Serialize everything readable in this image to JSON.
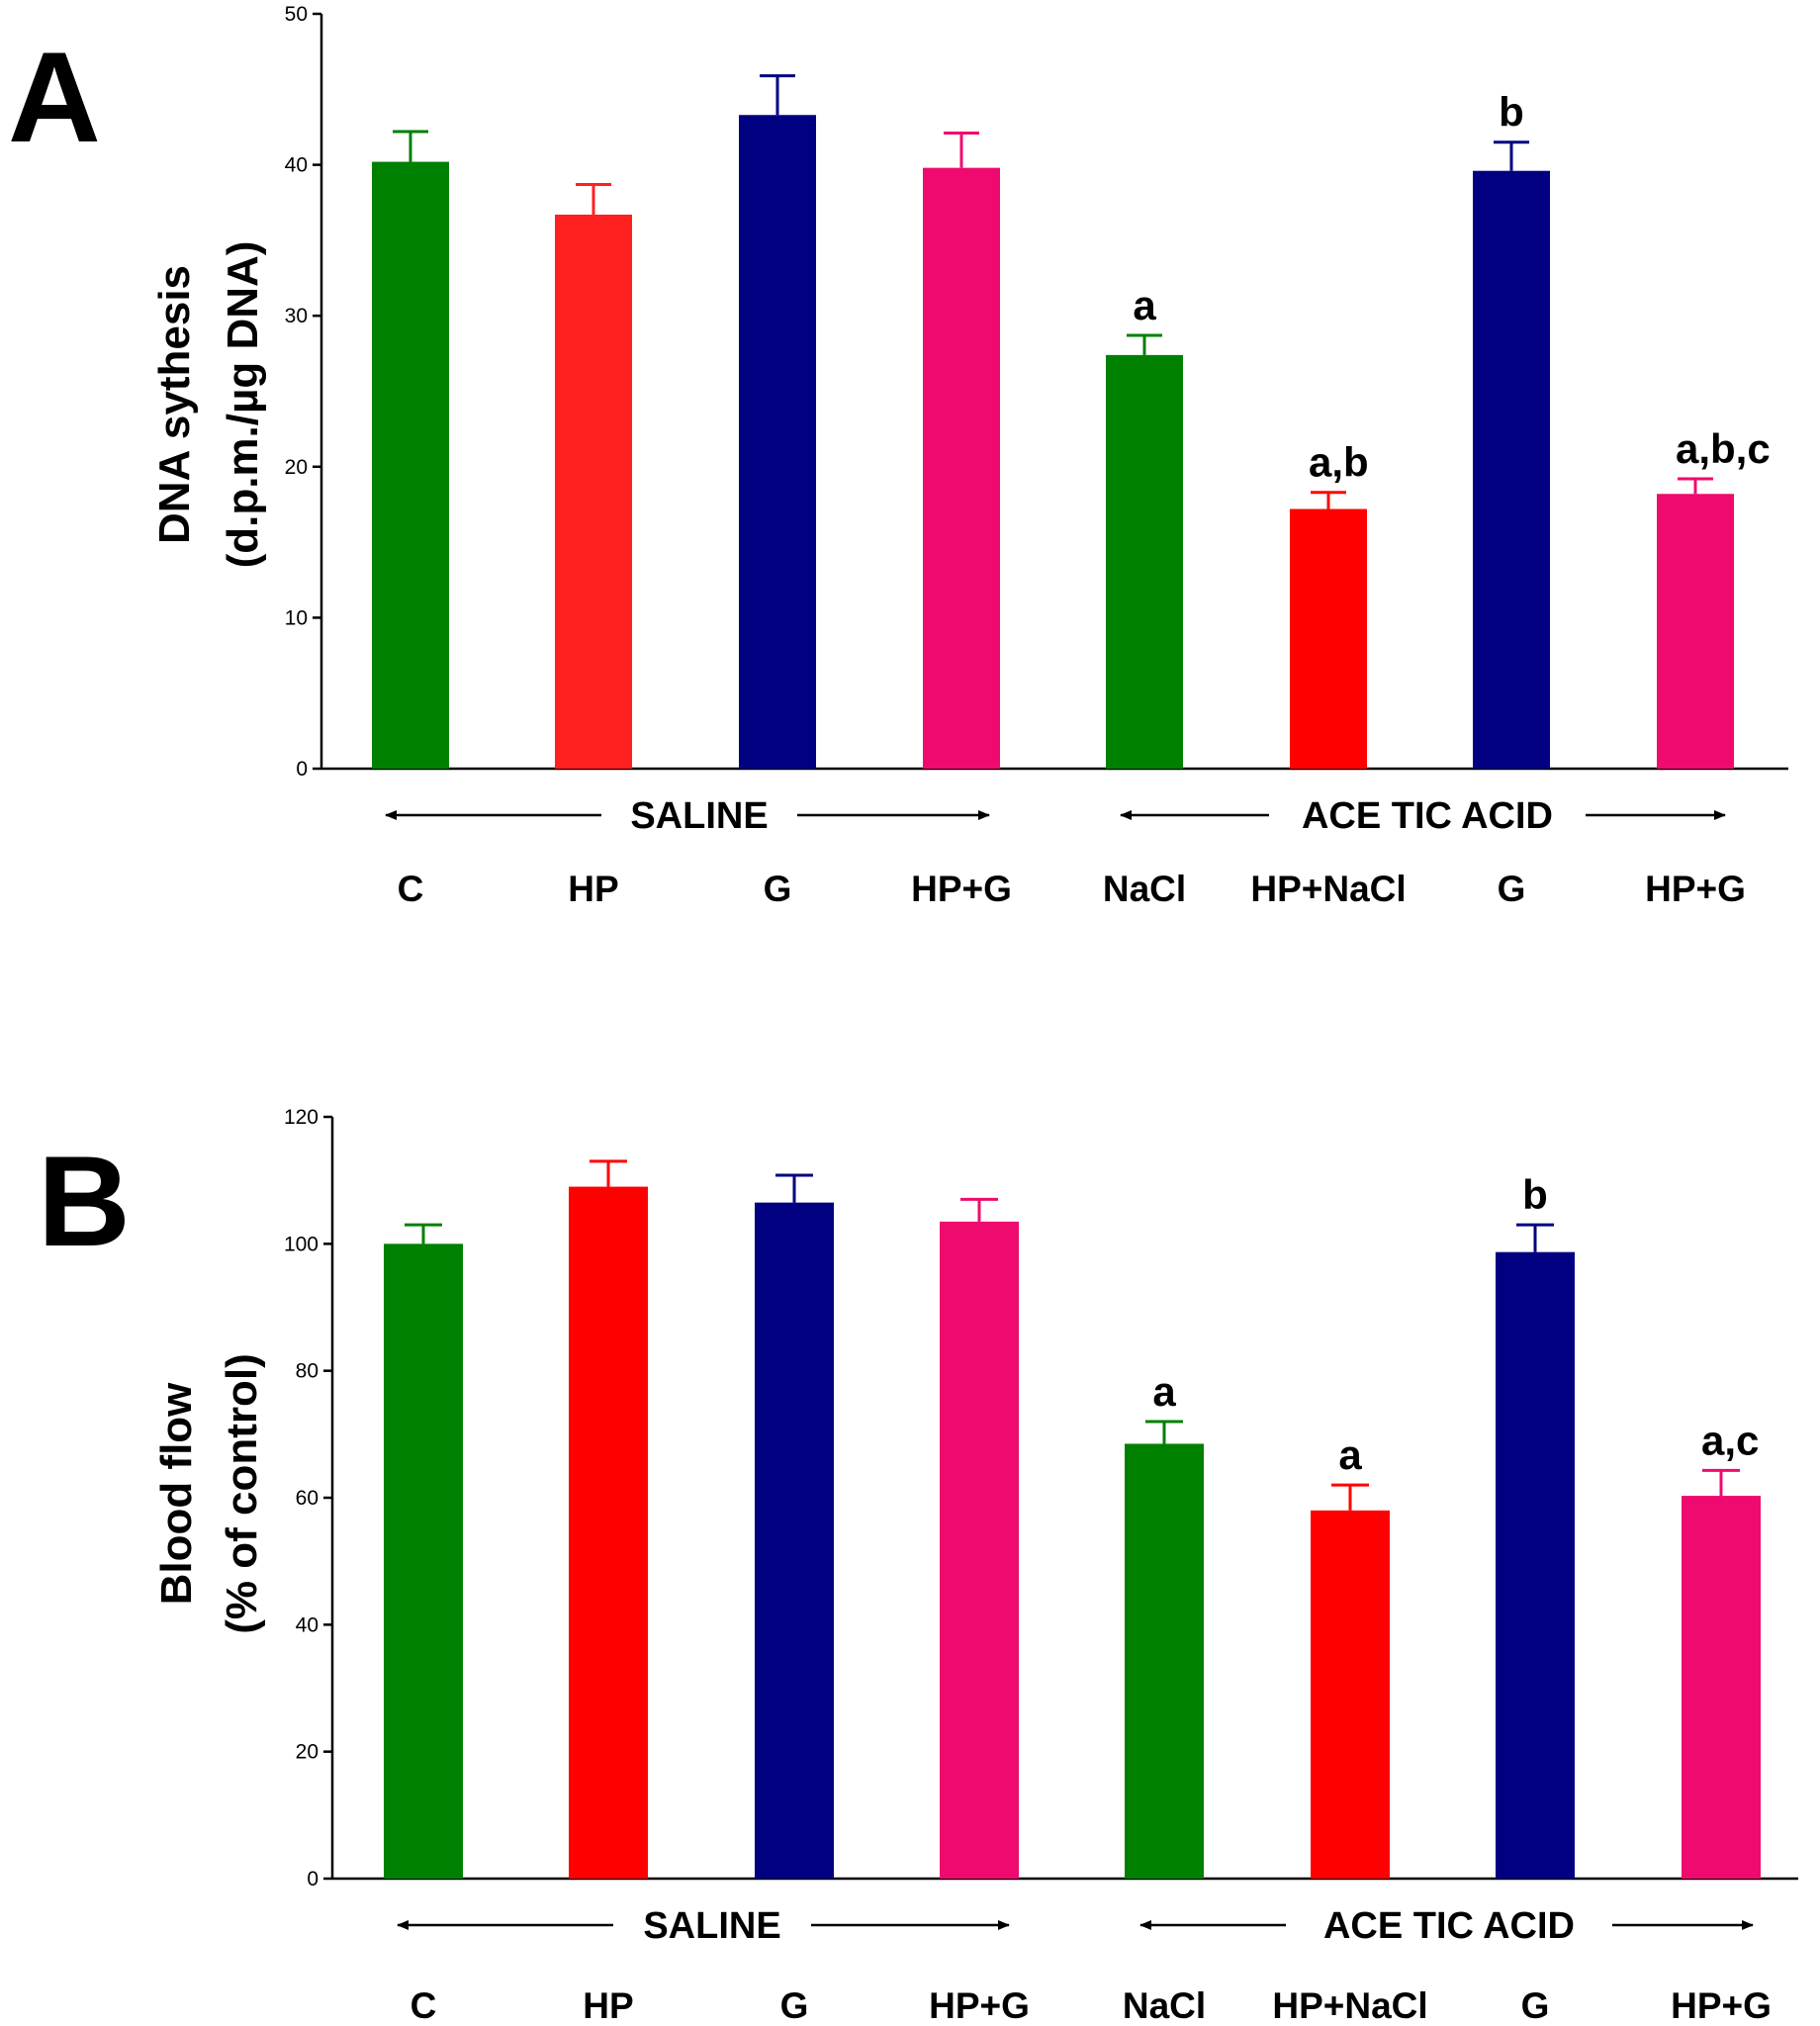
{
  "chart_data": [
    {
      "type": "bar",
      "panel": "A",
      "ylabel_line1": "DNA sythesis",
      "ylabel_line2": "(d.p.m./µg DNA)",
      "ylim": [
        0,
        50
      ],
      "yticks": [
        "0",
        "10",
        "20",
        "30",
        "40",
        "50"
      ],
      "categories": [
        "C",
        "HP",
        "G",
        "HP+G",
        "NaCl",
        "HP+NaCl",
        "G",
        "HP+G"
      ],
      "values": [
        40.2,
        36.7,
        43.3,
        39.8,
        27.4,
        17.2,
        39.6,
        18.2
      ],
      "errors": [
        2.0,
        2.0,
        2.6,
        2.3,
        1.3,
        1.1,
        1.9,
        1.0
      ],
      "colors": [
        "#008000",
        "#ff2020",
        "#000080",
        "#ee0a6e",
        "#008000",
        "#ff0000",
        "#000080",
        "#ee0a6e"
      ],
      "annotations": [
        "",
        "",
        "",
        "",
        "a",
        "a,b",
        "b",
        "a,b,c"
      ],
      "groups": [
        {
          "label": "SALINE",
          "start": 0,
          "end": 3
        },
        {
          "label": "ACE TIC ACID",
          "start": 4,
          "end": 7
        }
      ]
    },
    {
      "type": "bar",
      "panel": "B",
      "ylabel_line1": "Blood flow",
      "ylabel_line2": "(% of control)",
      "ylim": [
        0,
        120
      ],
      "yticks": [
        "0",
        "20",
        "40",
        "60",
        "80",
        "100",
        "120"
      ],
      "categories": [
        "C",
        "HP",
        "G",
        "HP+G",
        "NaCl",
        "HP+NaCl",
        "G",
        "HP+G"
      ],
      "values": [
        100,
        109,
        106.5,
        103.5,
        68.5,
        58,
        98.7,
        60.3
      ],
      "errors": [
        3,
        4,
        4.3,
        3.5,
        3.5,
        4,
        4.3,
        4
      ],
      "colors": [
        "#008000",
        "#ff0000",
        "#000080",
        "#ee0a6e",
        "#008000",
        "#ff0000",
        "#000080",
        "#ee0a6e"
      ],
      "annotations": [
        "",
        "",
        "",
        "",
        "a",
        "a",
        "b",
        "a,c"
      ],
      "groups": [
        {
          "label": "SALINE",
          "start": 0,
          "end": 3
        },
        {
          "label": "ACE TIC ACID",
          "start": 4,
          "end": 7
        }
      ]
    }
  ]
}
